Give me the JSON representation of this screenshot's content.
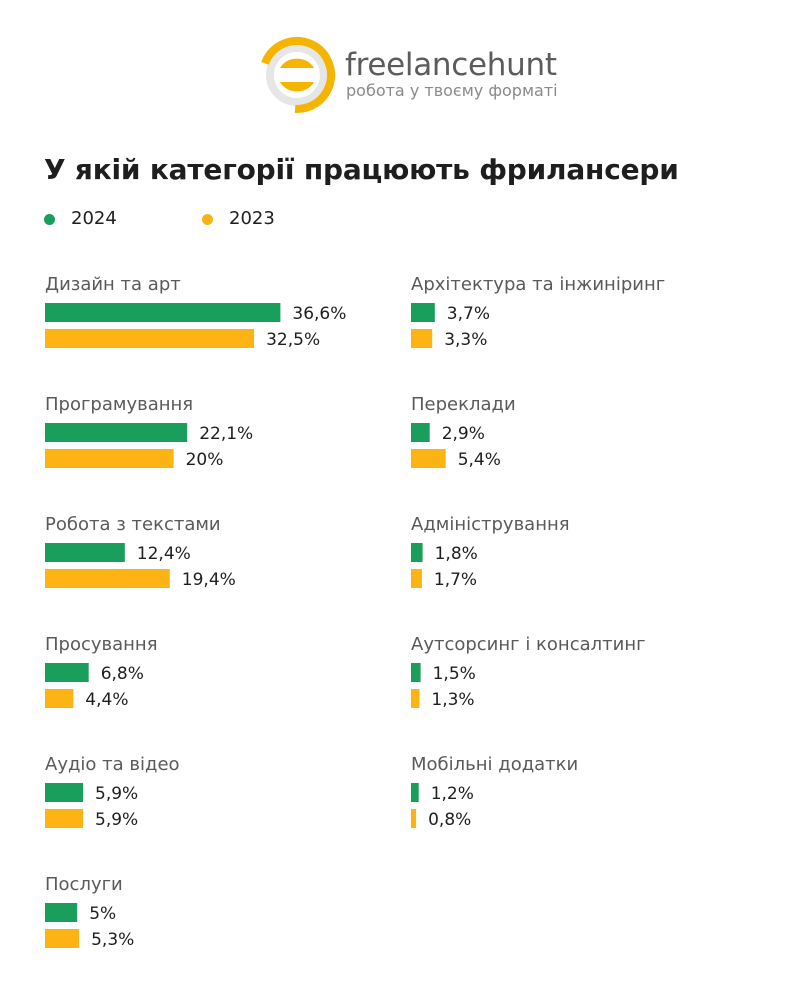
{
  "brand": {
    "name": "freelancehunt",
    "tagline": "робота у твоєму форматі",
    "color_primary": "#f4b400",
    "color_secondary": "#e6e6e6"
  },
  "chart_data": {
    "type": "bar",
    "orientation": "horizontal",
    "title": "У якій категорії працюють фрилансери",
    "unit": "%",
    "legend_position": "top-left",
    "grid": false,
    "xlim": [
      0,
      37
    ],
    "series": [
      {
        "name": "2024",
        "color": "#1a9e5c"
      },
      {
        "name": "2023",
        "color": "#fbb414"
      }
    ],
    "categories": [
      {
        "label": "Дизайн та арт",
        "values": [
          36.6,
          32.5
        ],
        "value_labels": [
          "36,6%",
          "32,5%"
        ]
      },
      {
        "label": "Програмування",
        "values": [
          22.1,
          20
        ],
        "value_labels": [
          "22,1%",
          "20%"
        ]
      },
      {
        "label": "Робота з текстами",
        "values": [
          12.4,
          19.4
        ],
        "value_labels": [
          "12,4%",
          "19,4%"
        ]
      },
      {
        "label": "Просування",
        "values": [
          6.8,
          4.4
        ],
        "value_labels": [
          "6,8%",
          "4,4%"
        ]
      },
      {
        "label": "Аудіо та відео",
        "values": [
          5.9,
          5.9
        ],
        "value_labels": [
          "5,9%",
          "5,9%"
        ]
      },
      {
        "label": "Послуги",
        "values": [
          5,
          5.3
        ],
        "value_labels": [
          "5%",
          "5,3%"
        ]
      },
      {
        "label": "Архітектура та інжиніринг",
        "values": [
          3.7,
          3.3
        ],
        "value_labels": [
          "3,7%",
          "3,3%"
        ]
      },
      {
        "label": "Переклади",
        "values": [
          2.9,
          5.4
        ],
        "value_labels": [
          "2,9%",
          "5,4%"
        ]
      },
      {
        "label": "Адміністрування",
        "values": [
          1.8,
          1.7
        ],
        "value_labels": [
          "1,8%",
          "1,7%"
        ]
      },
      {
        "label": "Аутсорсинг і консалтинг",
        "values": [
          1.5,
          1.3
        ],
        "value_labels": [
          "1,5%",
          "1,3%"
        ]
      },
      {
        "label": "Мобільні додатки",
        "values": [
          1.2,
          0.8
        ],
        "value_labels": [
          "1,2%",
          "0,8%"
        ]
      }
    ]
  }
}
